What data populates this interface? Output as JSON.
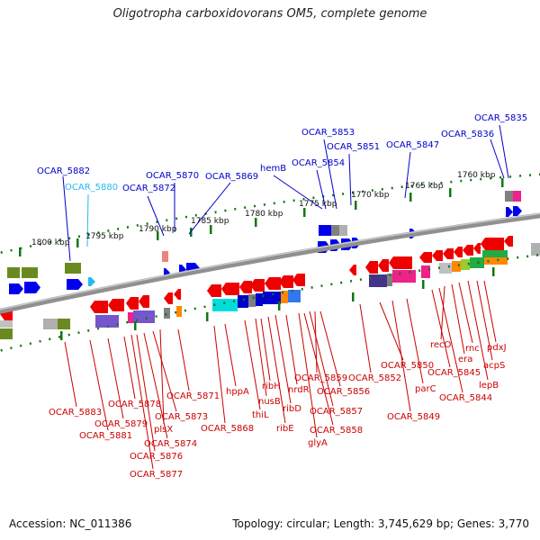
{
  "title": "Oligotropha carboxidovorans OM5, complete genome",
  "footer": {
    "accession": "Accession: NC_011386",
    "summary": "Topology: circular; Length: 3,745,629 bp; Genes: 3,770"
  },
  "colors": {
    "forward_label": "#0000cc",
    "reverse_label": "#cc0000",
    "highlight_label": "#22bbee",
    "backbone": "#808080",
    "tick": "#117711"
  },
  "scale_labels": [
    "1800 kbp",
    "1795 kbp",
    "1790 kbp",
    "1785 kbp",
    "1780 kbp",
    "1775 kbp",
    "1770 kbp",
    "1765 kbp",
    "1760 kbp"
  ],
  "forward_genes": [
    "OCAR_5882",
    "OCAR_5880",
    "OCAR_5872",
    "OCAR_5870",
    "OCAR_5869",
    "hemB",
    "OCAR_5854",
    "OCAR_5853",
    "OCAR_5851",
    "OCAR_5847",
    "OCAR_5836",
    "OCAR_5835"
  ],
  "reverse_genes": [
    "OCAR_5883",
    "OCAR_5881",
    "OCAR_5879",
    "OCAR_5878",
    "OCAR_5877",
    "OCAR_5876",
    "OCAR_5874",
    "OCAR_5873",
    "plsX",
    "OCAR_5871",
    "OCAR_5868",
    "hppA",
    "thiL",
    "nusB",
    "ribH",
    "ribE",
    "ribD",
    "nrdR",
    "glyA",
    "OCAR_5858",
    "OCAR_5857",
    "OCAR_5859",
    "OCAR_5856",
    "OCAR_5852",
    "OCAR_5850",
    "OCAR_5849",
    "parC",
    "OCAR_5845",
    "OCAR_5844",
    "recO",
    "era",
    "rnc",
    "lepB",
    "acpS",
    "pdxJ"
  ]
}
